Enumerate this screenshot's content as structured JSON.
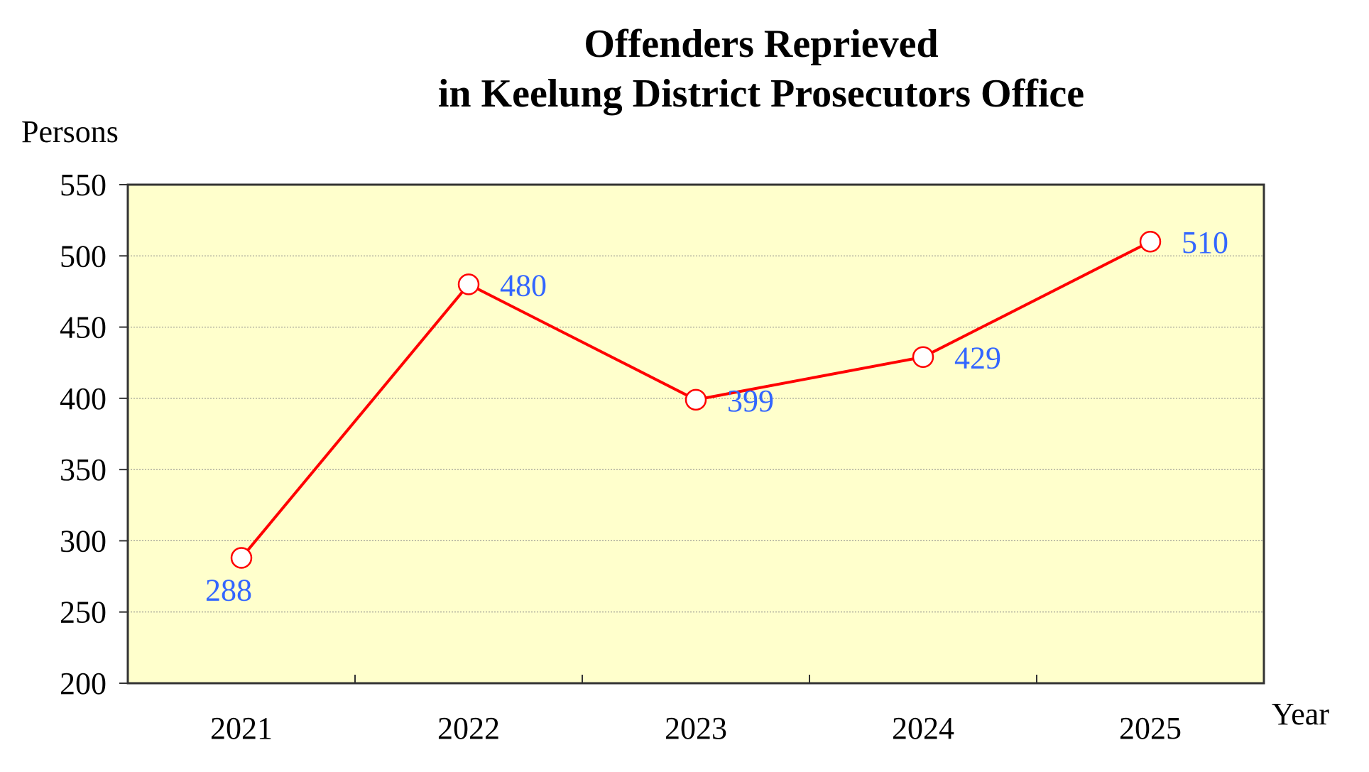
{
  "chart_data": {
    "type": "line",
    "title": [
      "Offenders Reprieved",
      "in Keelung District Prosecutors Office"
    ],
    "ylabel": "Persons",
    "xlabel": "Year",
    "categories": [
      "2021",
      "2022",
      "2023",
      "2024",
      "2025"
    ],
    "series": [
      {
        "values": [
          288,
          480,
          399,
          429,
          510
        ]
      }
    ],
    "ylim": [
      200,
      550
    ],
    "yticks": [
      200,
      250,
      300,
      350,
      400,
      450,
      500,
      550
    ],
    "grid": true,
    "colors": {
      "plot_background": "#ffffcc",
      "line": "#ff0000",
      "marker_fill": "#ffffff",
      "label": "#3366ff",
      "grid": "#888888",
      "frame": "#333333"
    }
  }
}
